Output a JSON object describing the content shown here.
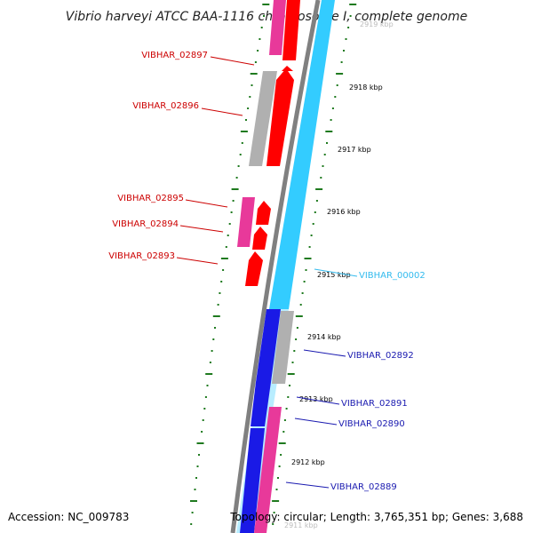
{
  "title": "Vibrio harveyi ATCC BAA-1116 chromosome I, complete genome",
  "accession": "Accession: NC_009783",
  "topology": "Topology: circular; Length: 3,765,351 bp; Genes: 3,688",
  "colors": {
    "red_cds": "#ff0000",
    "pink_cds": "#e8399a",
    "grey_cds": "#b0b0b0",
    "blue_cds": "#1a1ae6",
    "cyan_feature": "#33ccff",
    "backbone": "#808080",
    "tick": "#1f7a1f",
    "red_label": "#cc0000",
    "blue_label": "#1a1ab0",
    "cyan_label": "#33bbee"
  },
  "kbp_labels": [
    "2919 kbp",
    "2918 kbp",
    "2917 kbp",
    "2916 kbp",
    "2915 kbp",
    "2914 kbp",
    "2913 kbp",
    "2912 kbp",
    "2911 kbp"
  ],
  "genes_left": [
    "VIBHAR_02897",
    "VIBHAR_02896",
    "VIBHAR_02895",
    "VIBHAR_02894",
    "VIBHAR_02893"
  ],
  "genes_right": [
    "VIBHAR_00002",
    "VIBHAR_02892",
    "VIBHAR_02891",
    "VIBHAR_02890",
    "VIBHAR_02889"
  ]
}
